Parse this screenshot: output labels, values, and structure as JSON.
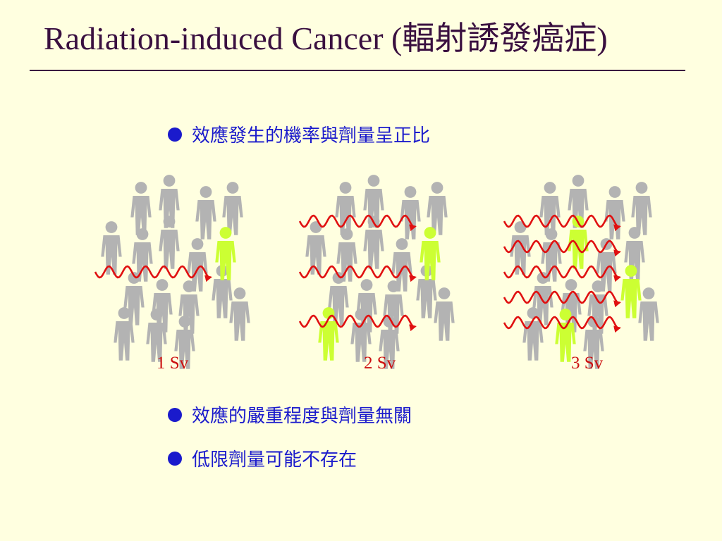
{
  "title": "Radiation-induced Cancer (輻射誘發癌症)",
  "bullets": [
    "效應發生的機率與劑量呈正比",
    "效應的嚴重程度與劑量無關",
    "低限劑量可能不存在"
  ],
  "panels": [
    {
      "dose_label": "1 Sv",
      "rays": 1,
      "affected_people": 1
    },
    {
      "dose_label": "2 Sv",
      "rays": 3,
      "affected_people": 2
    },
    {
      "dose_label": "3 Sv",
      "rays": 5,
      "affected_people": 3
    }
  ],
  "colors": {
    "background": "#FFFFE0",
    "title": "#3a1040",
    "bullet_text": "#1a1acc",
    "person": "#b3b3b3",
    "affected_person": "#ccff33",
    "radiation_wave": "#e01010",
    "dose_label": "#cc1010"
  }
}
